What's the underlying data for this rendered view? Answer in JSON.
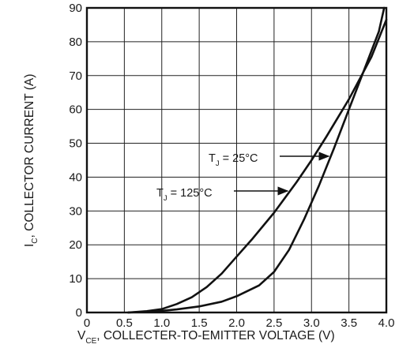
{
  "chart_data": {
    "type": "line",
    "title": "",
    "xlabel": {
      "main": "V",
      "sub": "CE",
      "rest": ", COLLECTER-TO-EMITTER VOLTAGE (V)"
    },
    "ylabel": {
      "main": "I",
      "sub": "C",
      "rest": ", COLLECTOR CURRENT (A)"
    },
    "xlim": [
      0,
      4.0
    ],
    "ylim": [
      0,
      90
    ],
    "xticks": [
      "0",
      "0.5",
      "1.0",
      "1.5",
      "2.0",
      "2.5",
      "3.0",
      "3.5",
      "4.0"
    ],
    "yticks": [
      "0",
      "10",
      "20",
      "30",
      "40",
      "50",
      "60",
      "70",
      "80",
      "90"
    ],
    "grid": true,
    "series": [
      {
        "name": "T_J = 25°C",
        "x": [
          0.55,
          0.8,
          1.0,
          1.2,
          1.4,
          1.6,
          1.8,
          2.0,
          2.2,
          2.5,
          2.8,
          3.0,
          3.2,
          3.5,
          3.8,
          4.0
        ],
        "y": [
          0,
          0.4,
          1.0,
          2.5,
          4.5,
          7.5,
          11.5,
          16.5,
          21.5,
          29.5,
          38.5,
          45.0,
          52.0,
          63.0,
          75.5,
          86.5
        ]
      },
      {
        "name": "T_J = 125°C",
        "x": [
          0.55,
          0.8,
          1.0,
          1.2,
          1.5,
          1.8,
          2.0,
          2.3,
          2.5,
          2.7,
          2.9,
          3.1,
          3.3,
          3.5,
          3.7,
          3.9,
          3.97
        ],
        "y": [
          0,
          0.2,
          0.5,
          0.9,
          1.8,
          3.2,
          4.8,
          8.0,
          12.0,
          18.5,
          27.5,
          37.5,
          48.5,
          60.0,
          71.5,
          83.0,
          90.0
        ]
      }
    ],
    "annotations": [
      {
        "main": "T",
        "sub": "J",
        "rest": " = 25°C",
        "series": 0
      },
      {
        "main": "T",
        "sub": "J",
        "rest": " = 125°C",
        "series": 1
      }
    ]
  }
}
